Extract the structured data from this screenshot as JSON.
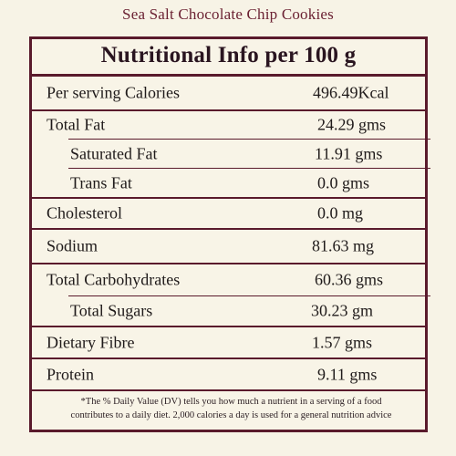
{
  "page_title": "Sea Salt Chocolate Chip Cookies",
  "panel": {
    "heading": "Nutritional Info per 100 g",
    "rows": [
      {
        "label": "Per serving Calories",
        "value": "496.49Kcal"
      },
      {
        "label": "Total Fat",
        "value": "24.29 gms"
      },
      {
        "label": "Saturated Fat",
        "value": "11.91 gms"
      },
      {
        "label": "Trans Fat",
        "value": "0.0 gms"
      },
      {
        "label": "Cholesterol",
        "value": "0.0 mg"
      },
      {
        "label": "Sodium",
        "value": "81.63 mg"
      },
      {
        "label": "Total Carbohydrates",
        "value": "60.36 gms"
      },
      {
        "label": "Total Sugars",
        "value": "30.23 gm"
      },
      {
        "label": "Dietary Fibre",
        "value": "1.57 gms"
      },
      {
        "label": "Protein",
        "value": "9.11 gms"
      }
    ],
    "footnote_line1": "*The % Daily Value (DV) tells you how much a nutrient in a serving of a food",
    "footnote_line2": "contributes to a daily diet. 2,000 calories a day is used for a general nutrition advice"
  },
  "colors": {
    "background": "#f7f3e6",
    "border": "#5a1a2c",
    "title": "#6b2233"
  }
}
